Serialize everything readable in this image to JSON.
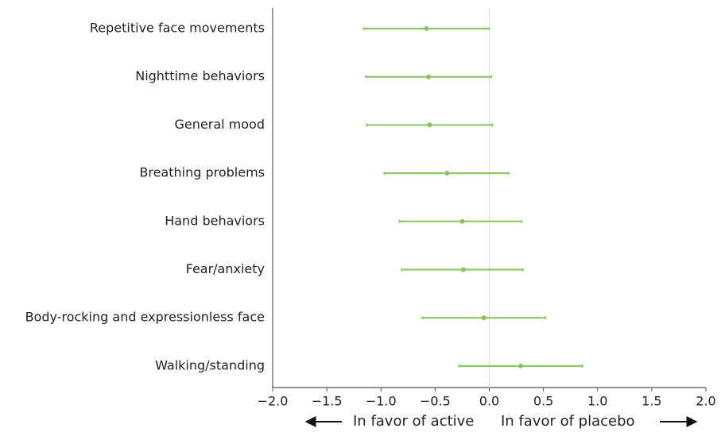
{
  "chart_data": {
    "type": "forest",
    "categories": [
      "Repetitive face movements",
      "Nighttime behaviors",
      "General mood",
      "Breathing problems",
      "Hand behaviors",
      "Fear/anxiety",
      "Body-rocking and expressionless face",
      "Walking/standing"
    ],
    "series": [
      {
        "color": "#86c55a",
        "values": [
          -0.58,
          -0.56,
          -0.55,
          -0.39,
          -0.25,
          -0.24,
          -0.05,
          0.29
        ],
        "lower": [
          -1.16,
          -1.14,
          -1.13,
          -0.97,
          -0.83,
          -0.81,
          -0.62,
          -0.28
        ],
        "upper": [
          0.0,
          0.02,
          0.03,
          0.18,
          0.3,
          0.31,
          0.52,
          0.86
        ]
      }
    ],
    "xlim": [
      -2,
      2
    ],
    "xticks": [
      {
        "value": -2,
        "label": "−2.0"
      },
      {
        "value": -1.5,
        "label": "−1.5"
      },
      {
        "value": -1,
        "label": "−1.0"
      },
      {
        "value": -0.5,
        "label": "−0.5"
      },
      {
        "value": 0,
        "label": "0.0"
      },
      0.5,
      {
        "value": 1,
        "label": "1.0"
      },
      1.5,
      {
        "value": 2,
        "label": "2.0"
      }
    ],
    "annotations": [
      "In favor of active",
      "In favor of placebo"
    ]
  }
}
